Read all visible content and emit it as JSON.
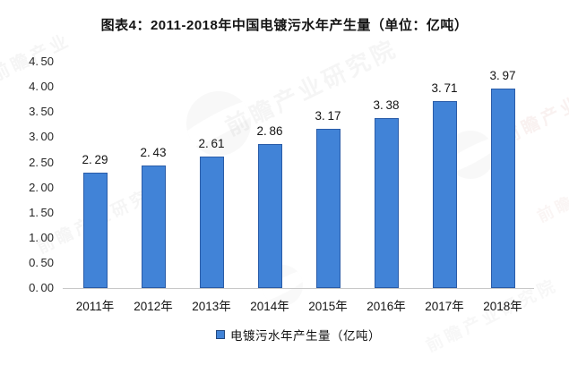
{
  "title": "图表4：2011-2018年中国电镀污水年产生量（单位：亿吨）",
  "watermark": {
    "brand": "前瞻产业研究院",
    "brand_short": "前瞻产业"
  },
  "legend": {
    "label": "电镀污水年产生量（亿吨）",
    "marker_color": "#4183d7"
  },
  "chart_data": {
    "type": "bar",
    "title": "图表4：2011-2018年中国电镀污水年产生量（单位：亿吨）",
    "categories": [
      "2011年",
      "2012年",
      "2013年",
      "2014年",
      "2015年",
      "2016年",
      "2017年",
      "2018年"
    ],
    "values": [
      2.29,
      2.43,
      2.61,
      2.86,
      3.17,
      3.38,
      3.71,
      3.97
    ],
    "series_name": "电镀污水年产生量（亿吨）",
    "unit": "亿吨",
    "xlabel": "",
    "ylabel": "",
    "ylim": [
      0,
      4.5
    ],
    "ytick_step": 0.5,
    "ytick_labels": [
      "0.00",
      "0.50",
      "1.00",
      "1.50",
      "2.00",
      "2.50",
      "3.00",
      "3.50",
      "4.00",
      "4.50"
    ],
    "grid": false,
    "legend_position": "bottom",
    "data_labels": true,
    "bar_color": "#4183d7",
    "bar_border_color": "#2a5ca8",
    "axis_line_color": "#c8c8c8"
  }
}
